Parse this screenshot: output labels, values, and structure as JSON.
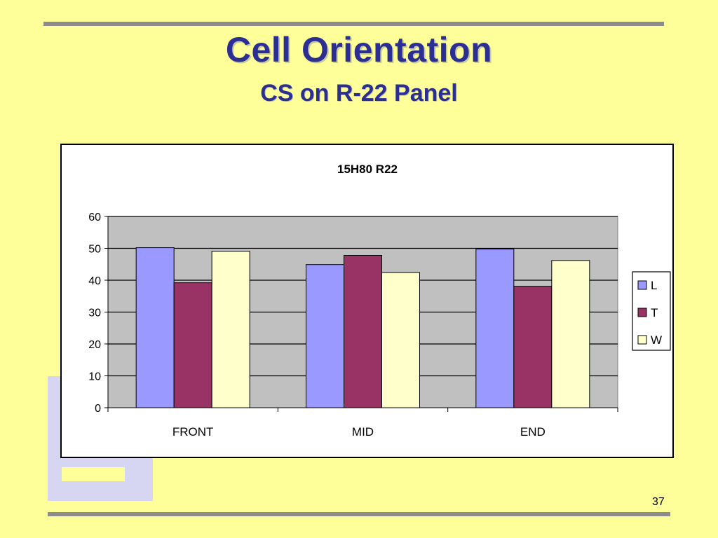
{
  "slide": {
    "title": "Cell Orientation",
    "subtitle": "CS on R-22 Panel",
    "page_number": "37"
  },
  "colors": {
    "background": "#ffff99",
    "title": "#2b2f93",
    "plot_area": "#c0c0c0",
    "rule": "#8c8c8c",
    "deco": "#d6d6f2"
  },
  "chart_data": {
    "type": "bar",
    "title": "15H80  R22",
    "categories": [
      "FRONT",
      "MID",
      "END"
    ],
    "series": [
      {
        "name": "L",
        "color": "#9999ff",
        "values": [
          50.2,
          44.9,
          49.8
        ]
      },
      {
        "name": "T",
        "color": "#993366",
        "values": [
          39.2,
          47.8,
          38.1
        ]
      },
      {
        "name": "W",
        "color": "#ffffcc",
        "values": [
          49.1,
          42.4,
          46.2
        ]
      }
    ],
    "ylim": [
      0,
      60
    ],
    "yticks": [
      "0",
      "10",
      "20",
      "30",
      "40",
      "50",
      "60"
    ],
    "grid": true,
    "legend_position": "right"
  }
}
